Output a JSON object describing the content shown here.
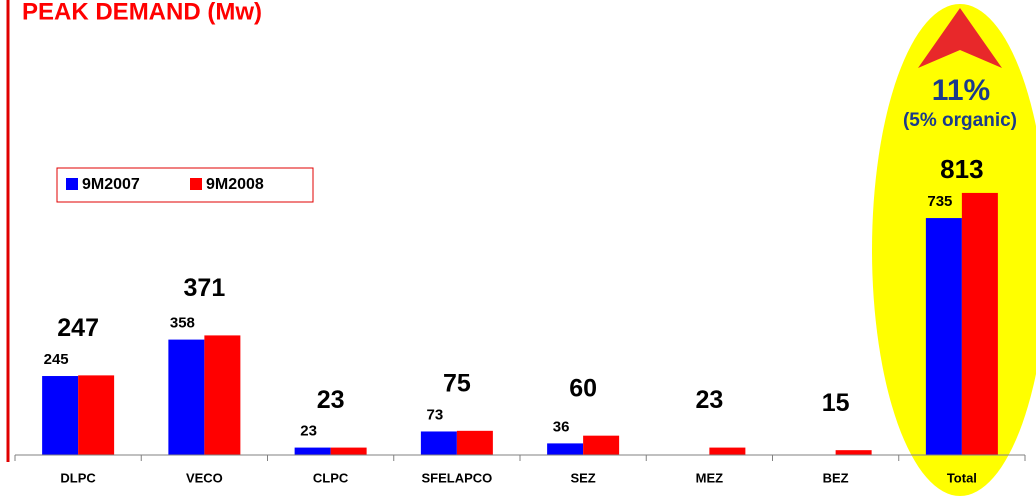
{
  "chart_data": {
    "type": "bar",
    "title": "PEAK DEMAND (Mw)",
    "categories": [
      "DLPC",
      "VECO",
      "CLPC",
      "SFELAPCO",
      "SEZ",
      "MEZ",
      "BEZ",
      "Total"
    ],
    "series": [
      {
        "name": "9M2007",
        "color": "#0000ff",
        "values": [
          245,
          358,
          23,
          73,
          36,
          null,
          null,
          735
        ]
      },
      {
        "name": "9M2008",
        "color": "#ff0000",
        "values": [
          247,
          371,
          23,
          75,
          60,
          23,
          15,
          813
        ]
      }
    ],
    "ylim": [
      0,
      850
    ],
    "annotations": [
      "11%",
      "(5% organic)"
    ]
  }
}
